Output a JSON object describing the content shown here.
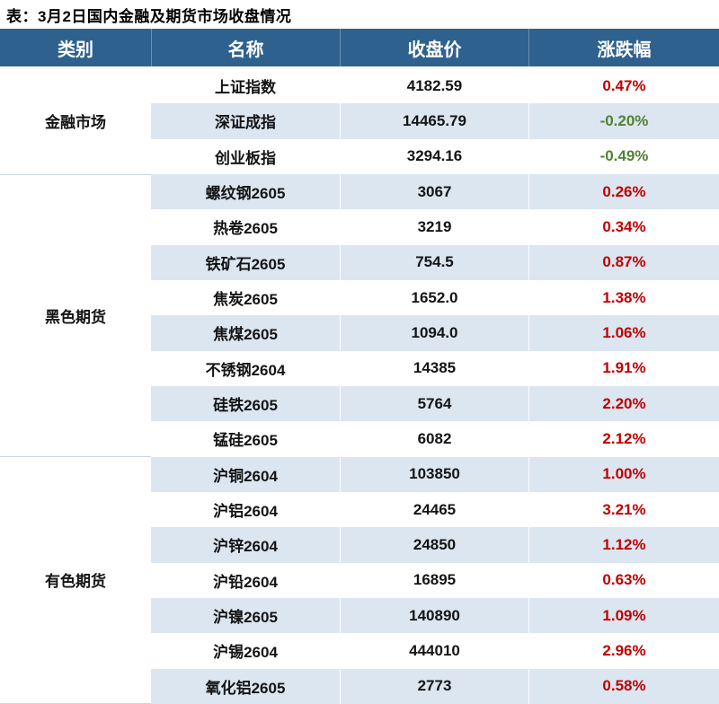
{
  "title": "表：3月2日国内金融及期货市场收盘情况",
  "colors": {
    "header_bg": "#2F618E",
    "header_text": "#FDFDFD",
    "row_stripe": "#DCE6F1",
    "up_red": "#C00000",
    "down_green": "#538135"
  },
  "table": {
    "columns": [
      "类别",
      "名称",
      "收盘价",
      "涨跌幅"
    ],
    "groups": [
      {
        "category": "金融市场",
        "rows": [
          {
            "name": "上证指数",
            "close": "4182.59",
            "change": "0.47%",
            "trend": "up"
          },
          {
            "name": "深证成指",
            "close": "14465.79",
            "change": "-0.20%",
            "trend": "down"
          },
          {
            "name": "创业板指",
            "close": "3294.16",
            "change": "-0.49%",
            "trend": "down"
          }
        ]
      },
      {
        "category": "黑色期货",
        "rows": [
          {
            "name": "螺纹钢2605",
            "close": "3067",
            "change": "0.26%",
            "trend": "up"
          },
          {
            "name": "热卷2605",
            "close": "3219",
            "change": "0.34%",
            "trend": "up"
          },
          {
            "name": "铁矿石2605",
            "close": "754.5",
            "change": "0.87%",
            "trend": "up"
          },
          {
            "name": "焦炭2605",
            "close": "1652.0",
            "change": "1.38%",
            "trend": "up"
          },
          {
            "name": "焦煤2605",
            "close": "1094.0",
            "change": "1.06%",
            "trend": "up"
          },
          {
            "name": "不锈钢2604",
            "close": "14385",
            "change": "1.91%",
            "trend": "up"
          },
          {
            "name": "硅铁2605",
            "close": "5764",
            "change": "2.20%",
            "trend": "up"
          },
          {
            "name": "锰硅2605",
            "close": "6082",
            "change": "2.12%",
            "trend": "up"
          }
        ]
      },
      {
        "category": "有色期货",
        "rows": [
          {
            "name": "沪铜2604",
            "close": "103850",
            "change": "1.00%",
            "trend": "up"
          },
          {
            "name": "沪铝2604",
            "close": "24465",
            "change": "3.21%",
            "trend": "up"
          },
          {
            "name": "沪锌2604",
            "close": "24850",
            "change": "1.12%",
            "trend": "up"
          },
          {
            "name": "沪铅2604",
            "close": "16895",
            "change": "0.63%",
            "trend": "up"
          },
          {
            "name": "沪镍2605",
            "close": "140890",
            "change": "1.09%",
            "trend": "up"
          },
          {
            "name": "沪锡2604",
            "close": "444010",
            "change": "2.96%",
            "trend": "up"
          },
          {
            "name": "氧化铝2605",
            "close": "2773",
            "change": "0.58%",
            "trend": "up"
          }
        ]
      }
    ]
  },
  "chart_data": {
    "type": "table",
    "title": "表：3月2日国内金融及期货市场收盘情况",
    "columns": [
      "类别",
      "名称",
      "收盘价",
      "涨跌幅"
    ],
    "rows": [
      [
        "金融市场",
        "上证指数",
        4182.59,
        "0.47%"
      ],
      [
        "金融市场",
        "深证成指",
        14465.79,
        "-0.20%"
      ],
      [
        "金融市场",
        "创业板指",
        3294.16,
        "-0.49%"
      ],
      [
        "黑色期货",
        "螺纹钢2605",
        3067,
        "0.26%"
      ],
      [
        "黑色期货",
        "热卷2605",
        3219,
        "0.34%"
      ],
      [
        "黑色期货",
        "铁矿石2605",
        754.5,
        "0.87%"
      ],
      [
        "黑色期货",
        "焦炭2605",
        1652.0,
        "1.38%"
      ],
      [
        "黑色期货",
        "焦煤2605",
        1094.0,
        "1.06%"
      ],
      [
        "黑色期货",
        "不锈钢2604",
        14385,
        "1.91%"
      ],
      [
        "黑色期货",
        "硅铁2605",
        5764,
        "2.20%"
      ],
      [
        "黑色期货",
        "锰硅2605",
        6082,
        "2.12%"
      ],
      [
        "有色期货",
        "沪铜2604",
        103850,
        "1.00%"
      ],
      [
        "有色期货",
        "沪铝2604",
        24465,
        "3.21%"
      ],
      [
        "有色期货",
        "沪锌2604",
        24850,
        "1.12%"
      ],
      [
        "有色期货",
        "沪铅2604",
        16895,
        "0.63%"
      ],
      [
        "有色期货",
        "沪镍2605",
        140890,
        "1.09%"
      ],
      [
        "有色期货",
        "沪锡2604",
        444010,
        "2.96%"
      ],
      [
        "有色期货",
        "氧化铝2605",
        2773,
        "0.58%"
      ]
    ]
  }
}
